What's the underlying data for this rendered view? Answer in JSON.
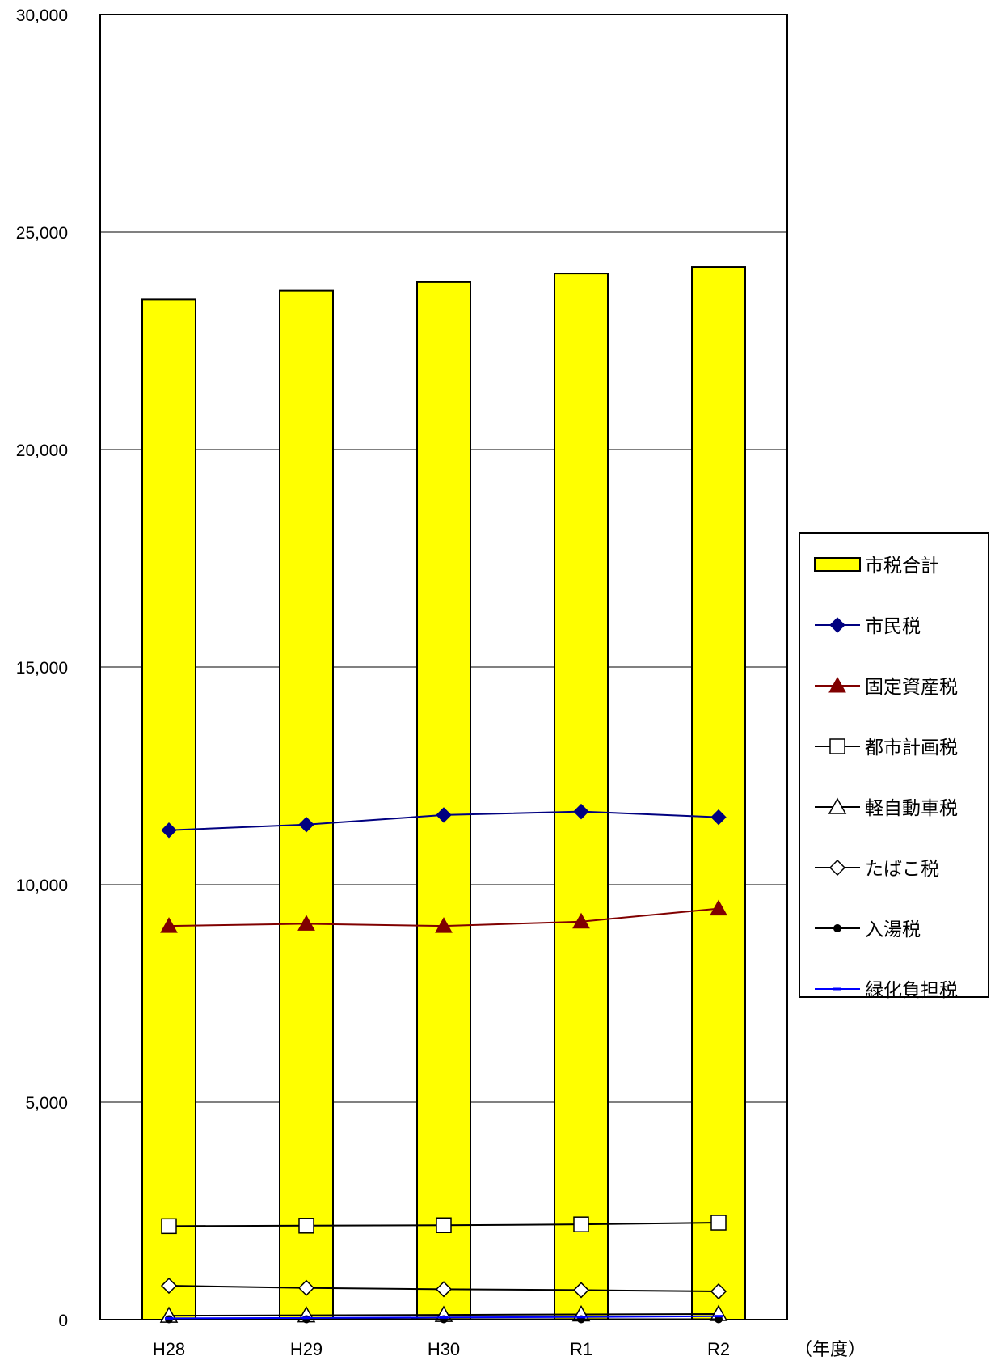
{
  "chart_data": {
    "type": "bar",
    "categories": [
      "H28",
      "H29",
      "H30",
      "R1",
      "R2"
    ],
    "x_unit_label": "（年度）",
    "ylim": [
      0,
      30000
    ],
    "yticks": [
      0,
      5000,
      10000,
      15000,
      20000,
      25000,
      30000
    ],
    "ytick_labels": [
      "0",
      "5,000",
      "10,000",
      "15,000",
      "20,000",
      "25,000",
      "30,000"
    ],
    "grid": true,
    "legend_position": "right",
    "bar_series": {
      "name": "市税合計",
      "values": [
        23450,
        23650,
        23850,
        24050,
        24200
      ],
      "color": "#ffff00"
    },
    "series": [
      {
        "name": "市民税",
        "marker": "diamond-filled",
        "color": "#000080",
        "values": [
          11250,
          11380,
          11600,
          11680,
          11550
        ]
      },
      {
        "name": "固定資産税",
        "marker": "triangle-filled",
        "color": "#800000",
        "values": [
          9050,
          9100,
          9050,
          9150,
          9450
        ]
      },
      {
        "name": "都市計画税",
        "marker": "square-open",
        "color": "#000000",
        "values": [
          2150,
          2160,
          2170,
          2190,
          2230
        ]
      },
      {
        "name": "軽自動車税",
        "marker": "triangle-open",
        "color": "#000000",
        "values": [
          90,
          100,
          110,
          120,
          130
        ]
      },
      {
        "name": "たばこ税",
        "marker": "diamond-open",
        "color": "#000000",
        "values": [
          780,
          730,
          700,
          680,
          650
        ]
      },
      {
        "name": "入湯税",
        "marker": "circle-filled",
        "color": "#000000",
        "values": [
          10,
          10,
          10,
          10,
          10
        ]
      },
      {
        "name": "緑化負担税",
        "marker": "dash",
        "color": "#0000ff",
        "values": [
          30,
          40,
          50,
          60,
          80
        ]
      }
    ]
  }
}
